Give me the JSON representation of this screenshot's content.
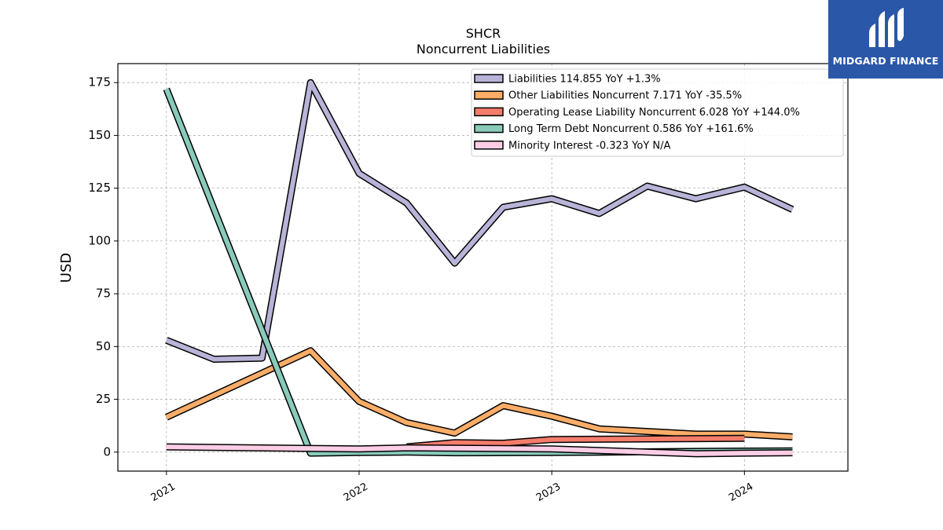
{
  "chart_data": {
    "type": "line",
    "title": "SHCR",
    "subtitle": "Noncurrent  Liabilities",
    "ylabel": "USD",
    "xlabel": "",
    "ylim": [
      -9,
      184
    ],
    "yticks": [
      0,
      25,
      50,
      75,
      100,
      125,
      150,
      175
    ],
    "xticks": [
      "2021",
      "2022",
      "2023",
      "2024"
    ],
    "grid": true,
    "legend_position": "top-right",
    "series": [
      {
        "name": "Liabilities  114.855 YoY +1.3%",
        "color": "#b8b4d8",
        "x": [
          "2021-01-01",
          "2021-04-01",
          "2021-07-01",
          "2021-10-01",
          "2022-01-01",
          "2022-04-01",
          "2022-07-01",
          "2022-10-01",
          "2023-01-01",
          "2023-04-01",
          "2023-07-01",
          "2023-10-01",
          "2024-01-01",
          "2024-04-01"
        ],
        "values": [
          53,
          44,
          44.5,
          175,
          132,
          118,
          89.5,
          116,
          120,
          113,
          126,
          120,
          125.5,
          114.9
        ]
      },
      {
        "name": "Other Liabilities Noncurrent  7.171 YoY -35.5%",
        "color": "#fbad68",
        "x": [
          "2021-01-01",
          "2021-10-01",
          "2022-01-01",
          "2022-04-01",
          "2022-07-01",
          "2022-10-01",
          "2023-01-01",
          "2023-04-01",
          "2023-10-01",
          "2024-01-01",
          "2024-04-01"
        ],
        "values": [
          16.5,
          48,
          24,
          14,
          9,
          22,
          17,
          11,
          8.5,
          8.5,
          7.2
        ]
      },
      {
        "name": "Operating Lease Liability Noncurrent  6.028 YoY +144.0%",
        "color": "#f47c6b",
        "x": [
          "2022-04-01",
          "2022-07-01",
          "2022-10-01",
          "2023-01-01",
          "2024-01-01"
        ],
        "values": [
          2.5,
          4.5,
          4.2,
          6,
          6.5
        ]
      },
      {
        "name": "Long Term Debt Noncurrent  0.586 YoY +161.6%",
        "color": "#89cbbb",
        "x": [
          "2021-01-01",
          "2021-10-01",
          "2022-01-01",
          "2022-04-01",
          "2022-07-01",
          "2023-01-01",
          "2024-01-01",
          "2024-04-01"
        ],
        "values": [
          172,
          -0.5,
          -0.2,
          0,
          -0.3,
          -0.2,
          0.5,
          0.6
        ]
      },
      {
        "name": "Minority Interest  -0.323 YoY N/A",
        "color": "#fccde5",
        "x": [
          "2021-01-01",
          "2022-01-01",
          "2022-04-01",
          "2023-01-01",
          "2023-07-01",
          "2023-10-01",
          "2024-01-01",
          "2024-04-01"
        ],
        "values": [
          2.5,
          1.5,
          2,
          1.5,
          0,
          -0.8,
          -0.5,
          -0.3
        ]
      }
    ]
  },
  "logo": {
    "text": "MIDGARD FINANCE"
  }
}
